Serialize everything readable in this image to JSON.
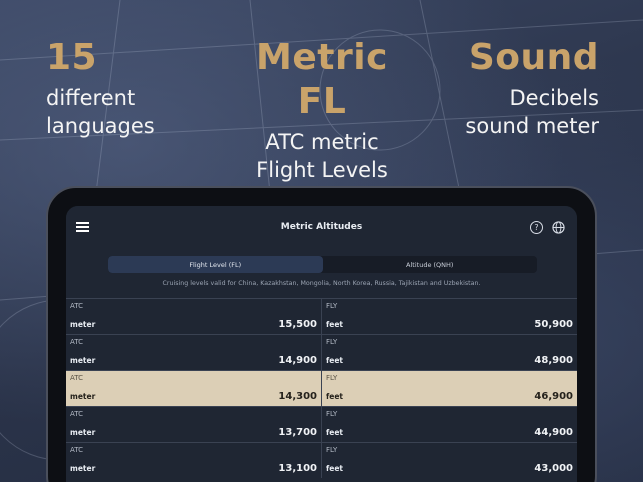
{
  "features": [
    {
      "big": "15",
      "lines": [
        "different",
        "languages"
      ]
    },
    {
      "big": "Metric FL",
      "lines": [
        "ATC metric",
        "Flight Levels"
      ]
    },
    {
      "big": "Sound",
      "lines": [
        "Decibels",
        "sound meter"
      ]
    }
  ],
  "app": {
    "title": "Metric Altitudes",
    "tabs": [
      {
        "label": "Flight Level (FL)",
        "active": true
      },
      {
        "label": "Altitude (QNH)",
        "active": false
      }
    ],
    "note": "Cruising levels valid for China, Kazakhstan, Mongolia, North Korea, Russia, Tajikistan and Uzbekistan.",
    "rows": [
      {
        "left": {
          "tag": "ATC",
          "unit": "meter",
          "value": "15,500"
        },
        "right": {
          "tag": "FLY",
          "unit": "feet",
          "value": "50,900"
        },
        "highlight": false
      },
      {
        "left": {
          "tag": "ATC",
          "unit": "meter",
          "value": "14,900"
        },
        "right": {
          "tag": "FLY",
          "unit": "feet",
          "value": "48,900"
        },
        "highlight": false
      },
      {
        "left": {
          "tag": "ATC",
          "unit": "meter",
          "value": "14,300"
        },
        "right": {
          "tag": "FLY",
          "unit": "feet",
          "value": "46,900"
        },
        "highlight": true
      },
      {
        "left": {
          "tag": "ATC",
          "unit": "meter",
          "value": "13,700"
        },
        "right": {
          "tag": "FLY",
          "unit": "feet",
          "value": "44,900"
        },
        "highlight": false
      },
      {
        "left": {
          "tag": "ATC",
          "unit": "meter",
          "value": "13,100"
        },
        "right": {
          "tag": "FLY",
          "unit": "feet",
          "value": "43,000"
        },
        "highlight": false
      }
    ]
  },
  "icons": {
    "menu": "hamburger-icon",
    "help": "question-circle-icon",
    "language": "globe-icon"
  },
  "colors": {
    "accent": "#c9a36a",
    "highlight_row": "#dccfb6",
    "screen": "#1f2633"
  }
}
